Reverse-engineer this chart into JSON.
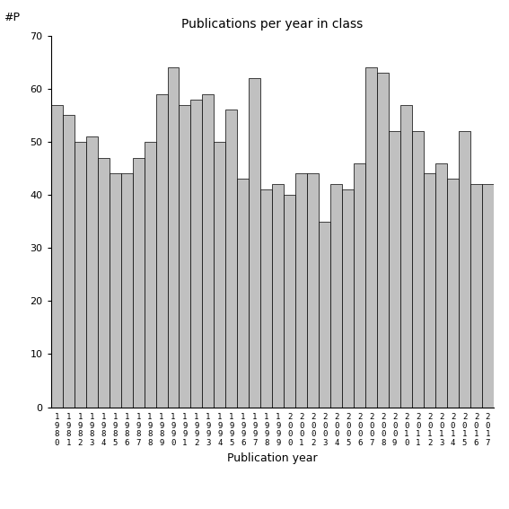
{
  "title": "Publications per year in class",
  "xlabel": "Publication year",
  "ylabel": "#P",
  "years": [
    1980,
    1981,
    1982,
    1983,
    1984,
    1985,
    1986,
    1987,
    1988,
    1989,
    1990,
    1991,
    1992,
    1993,
    1994,
    1995,
    1996,
    1997,
    1998,
    1999,
    2000,
    2001,
    2002,
    2003,
    2004,
    2005,
    2006,
    2007,
    2008,
    2009,
    2010,
    2011,
    2012,
    2013,
    2014,
    2015,
    2016,
    2017
  ],
  "values": [
    57,
    55,
    50,
    51,
    47,
    44,
    44,
    47,
    50,
    59,
    64,
    57,
    58,
    59,
    50,
    56,
    43,
    62,
    41,
    42,
    40,
    44,
    44,
    35,
    42,
    41,
    46,
    64,
    63,
    52,
    57,
    52,
    44,
    46,
    43,
    52,
    42,
    42
  ],
  "bar_color": "#c0c0c0",
  "bar_edge_color": "#000000",
  "ylim": [
    0,
    70
  ],
  "yticks": [
    0,
    10,
    20,
    30,
    40,
    50,
    60,
    70
  ],
  "bg_color": "#ffffff",
  "bar_width": 1.0
}
